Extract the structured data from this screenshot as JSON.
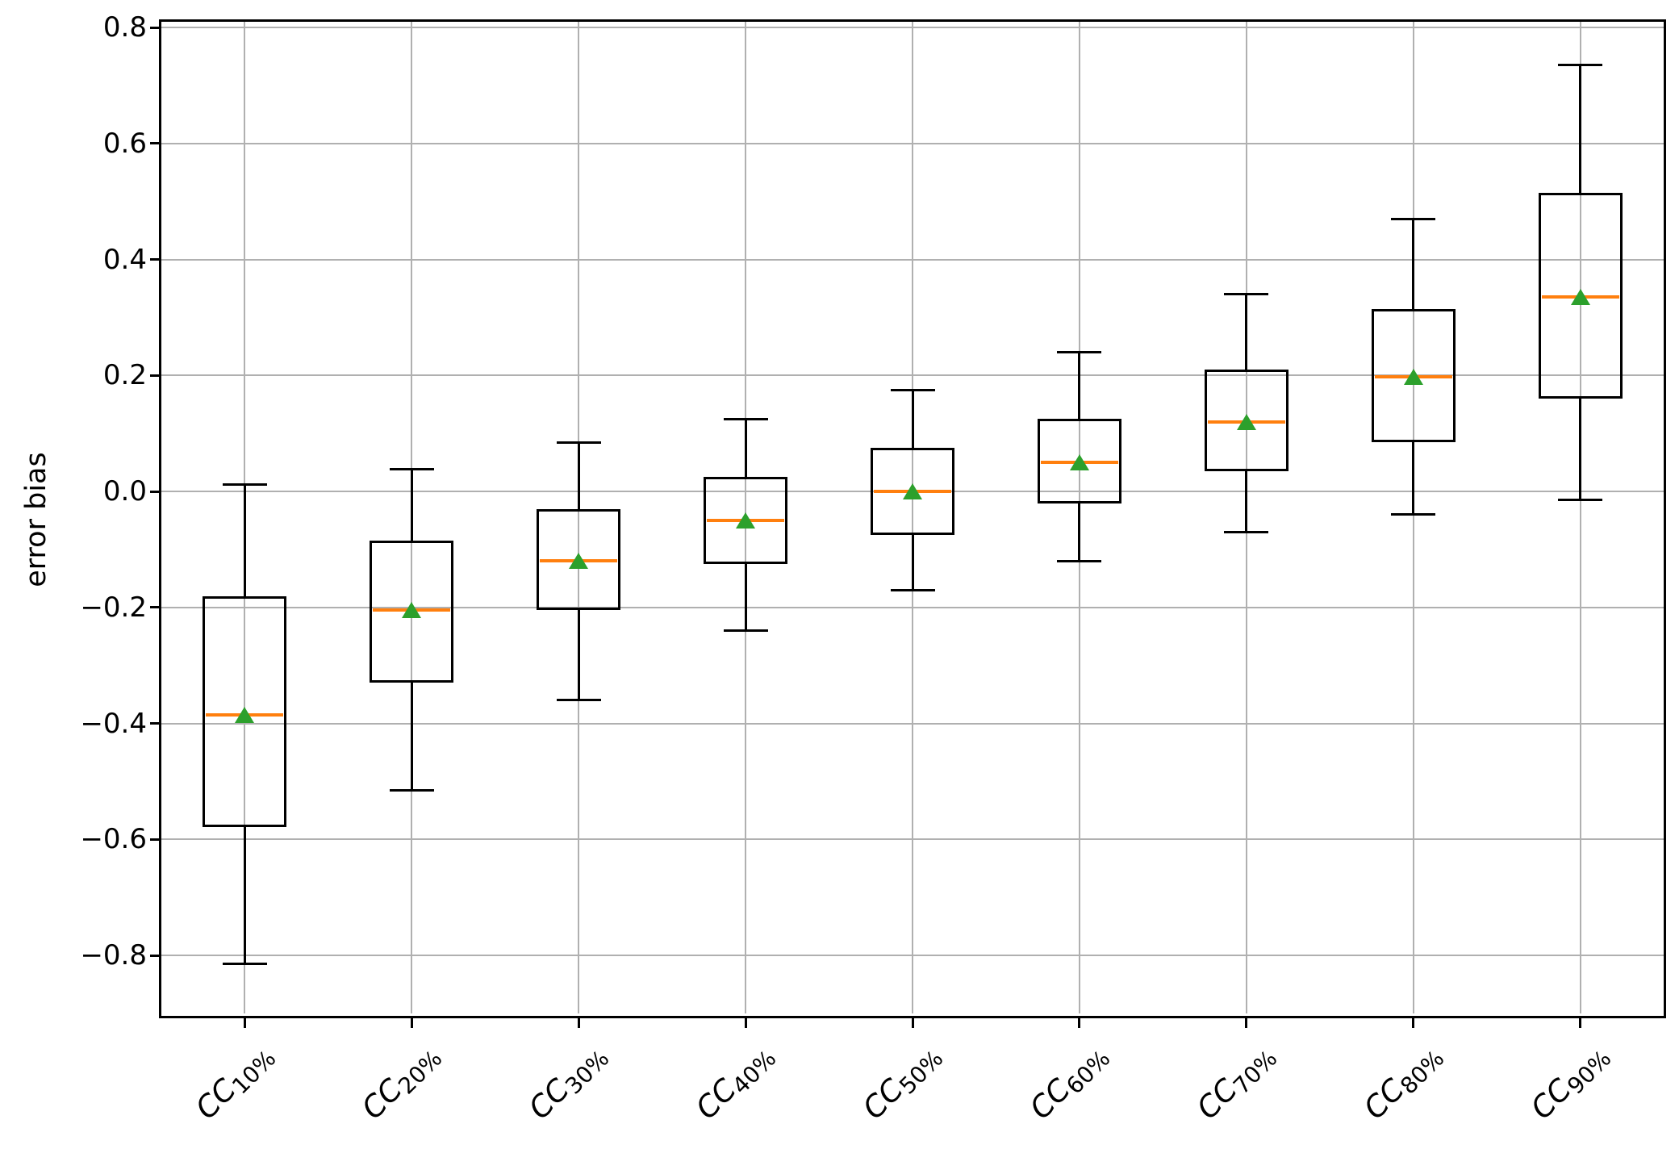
{
  "figure": {
    "background": "#ffffff",
    "colors": {
      "box_edge": "#000000",
      "median": "#ff7f0e",
      "mean_marker": "#2ca02c",
      "grid": "#b0b0b0",
      "axis": "#000000",
      "tick_label": "#000000"
    }
  },
  "chart_data": {
    "type": "boxplot",
    "title": "",
    "xlabel": "",
    "ylabel": "error bias",
    "grid": true,
    "legend": "none",
    "ylim": [
      -0.9,
      0.81
    ],
    "yticks": [
      0.8,
      0.6,
      0.4,
      0.2,
      0.0,
      -0.2,
      -0.4,
      -0.6,
      -0.8
    ],
    "ytick_labels": [
      "0.8",
      "0.6",
      "0.4",
      "0.2",
      "0.0",
      "−0.2",
      "−0.4",
      "−0.6",
      "−0.8"
    ],
    "categories": [
      {
        "base": "CC",
        "sub": "10%"
      },
      {
        "base": "CC",
        "sub": "20%"
      },
      {
        "base": "CC",
        "sub": "30%"
      },
      {
        "base": "CC",
        "sub": "40%"
      },
      {
        "base": "CC",
        "sub": "50%"
      },
      {
        "base": "CC",
        "sub": "60%"
      },
      {
        "base": "CC",
        "sub": "70%"
      },
      {
        "base": "CC",
        "sub": "80%"
      },
      {
        "base": "CC",
        "sub": "90%"
      }
    ],
    "boxes": [
      {
        "label": "CC10%",
        "whislo": -0.815,
        "q1": -0.578,
        "med": -0.385,
        "mean": -0.385,
        "q3": -0.18,
        "whishi": 0.012
      },
      {
        "label": "CC20%",
        "whislo": -0.515,
        "q1": -0.33,
        "med": -0.205,
        "mean": -0.205,
        "q3": -0.085,
        "whishi": 0.038
      },
      {
        "label": "CC30%",
        "whislo": -0.36,
        "q1": -0.205,
        "med": -0.12,
        "mean": -0.12,
        "q3": -0.03,
        "whishi": 0.085
      },
      {
        "label": "CC40%",
        "whislo": -0.24,
        "q1": -0.125,
        "med": -0.05,
        "mean": -0.05,
        "q3": 0.025,
        "whishi": 0.125
      },
      {
        "label": "CC50%",
        "whislo": -0.17,
        "q1": -0.075,
        "med": 0.0,
        "mean": 0.0,
        "q3": 0.075,
        "whishi": 0.175
      },
      {
        "label": "CC60%",
        "whislo": -0.12,
        "q1": -0.02,
        "med": 0.05,
        "mean": 0.05,
        "q3": 0.125,
        "whishi": 0.24
      },
      {
        "label": "CC70%",
        "whislo": -0.07,
        "q1": 0.035,
        "med": 0.12,
        "mean": 0.12,
        "q3": 0.21,
        "whishi": 0.34
      },
      {
        "label": "CC80%",
        "whislo": -0.04,
        "q1": 0.085,
        "med": 0.198,
        "mean": 0.198,
        "q3": 0.315,
        "whishi": 0.47
      },
      {
        "label": "CC90%",
        "whislo": -0.015,
        "q1": 0.16,
        "med": 0.335,
        "mean": 0.335,
        "q3": 0.515,
        "whishi": 0.735
      }
    ]
  }
}
